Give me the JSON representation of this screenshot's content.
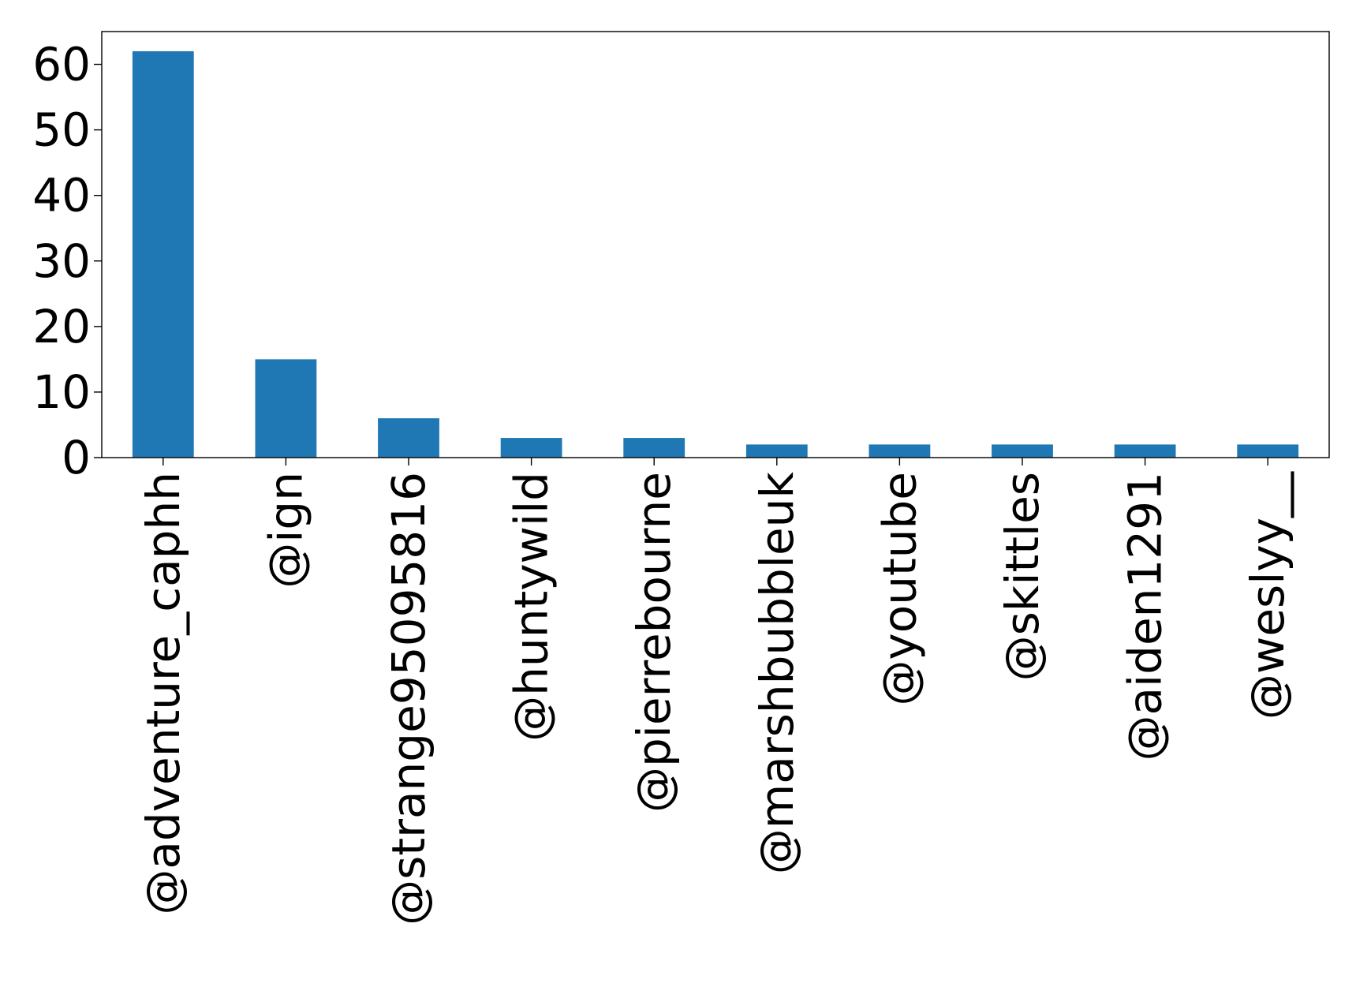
{
  "chart_data": {
    "type": "bar",
    "title": "",
    "xlabel": "",
    "ylabel": "",
    "categories": [
      "@adventure_caphh",
      "@ign",
      "@strange95095816",
      "@huntywild",
      "@pierrebourne",
      "@marshbubbleuk",
      "@youtube",
      "@skittles",
      "@aiden1291",
      "@weslyy__"
    ],
    "values": [
      62,
      15,
      6,
      3,
      3,
      2,
      2,
      2,
      2,
      2
    ],
    "ylim": [
      0,
      65
    ],
    "yticks": [
      0,
      10,
      20,
      30,
      40,
      50,
      60
    ],
    "ytick_labels": [
      "0",
      "10",
      "20",
      "30",
      "40",
      "50",
      "60"
    ],
    "bar_color": "#1f77b4",
    "grid": false,
    "legend": "none"
  }
}
